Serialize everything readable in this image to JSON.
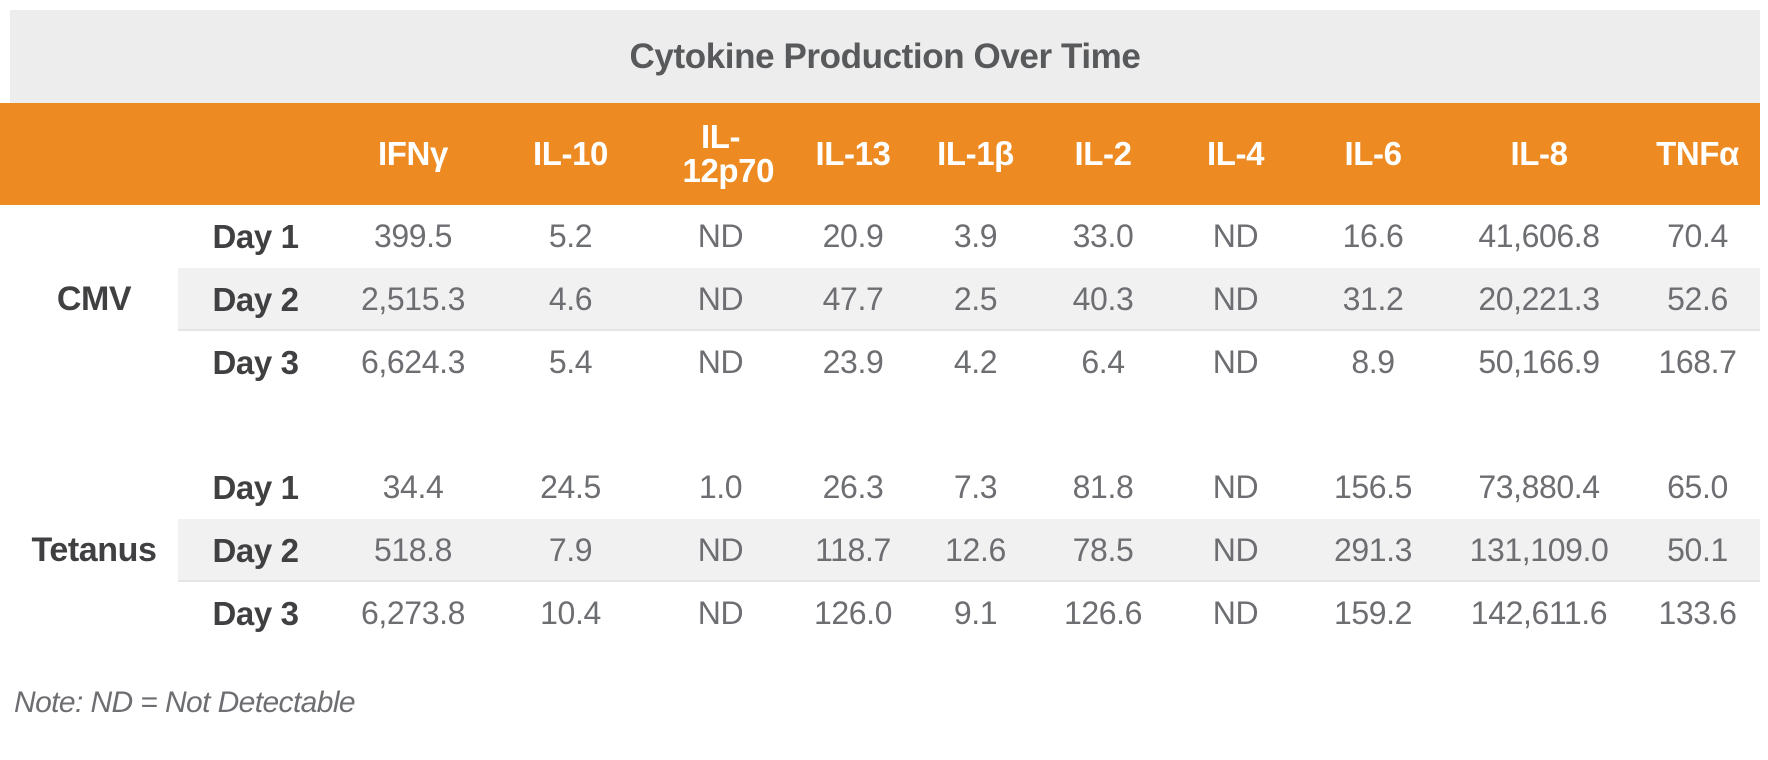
{
  "colors": {
    "accent_orange": "#ED8B22",
    "title_bar_bg": "#EDEDEE",
    "stripe_bg": "#F1F1F2",
    "title_text": "#58595B",
    "value_text": "#6D6E71",
    "label_text": "#404042",
    "header_text": "#FFFFFF"
  },
  "chart_data": {
    "type": "table",
    "title": "Cytokine Production Over Time",
    "columns": [
      "IFNγ",
      "IL-10",
      "IL-12p70",
      "IL-13",
      "IL-1β",
      "IL-2",
      "IL-4",
      "IL-6",
      "IL-8",
      "TNFα"
    ],
    "row_header_columns": [
      "group",
      "day"
    ],
    "groups": [
      {
        "label": "CMV",
        "rows": [
          {
            "day": "Day 1",
            "values": [
              "399.5",
              "5.2",
              "ND",
              "20.9",
              "3.9",
              "33.0",
              "ND",
              "16.6",
              "41,606.8",
              "70.4"
            ]
          },
          {
            "day": "Day 2",
            "values": [
              "2,515.3",
              "4.6",
              "ND",
              "47.7",
              "2.5",
              "40.3",
              "ND",
              "31.2",
              "20,221.3",
              "52.6"
            ]
          },
          {
            "day": "Day 3",
            "values": [
              "6,624.3",
              "5.4",
              "ND",
              "23.9",
              "4.2",
              "6.4",
              "ND",
              "8.9",
              "50,166.9",
              "168.7"
            ]
          }
        ]
      },
      {
        "label": "Tetanus",
        "rows": [
          {
            "day": "Day 1",
            "values": [
              "34.4",
              "24.5",
              "1.0",
              "26.3",
              "7.3",
              "81.8",
              "ND",
              "156.5",
              "73,880.4",
              "65.0"
            ]
          },
          {
            "day": "Day 2",
            "values": [
              "518.8",
              "7.9",
              "ND",
              "118.7",
              "12.6",
              "78.5",
              "ND",
              "291.3",
              "131,109.0",
              "50.1"
            ]
          },
          {
            "day": "Day 3",
            "values": [
              "6,273.8",
              "10.4",
              "ND",
              "126.0",
              "9.1",
              "126.6",
              "ND",
              "159.2",
              "142,611.6",
              "133.6"
            ]
          }
        ]
      }
    ],
    "note": "Note: ND = Not Detectable",
    "layout": {
      "striped_rows": "Day 2",
      "legend_position": "none",
      "grid": "off"
    }
  }
}
